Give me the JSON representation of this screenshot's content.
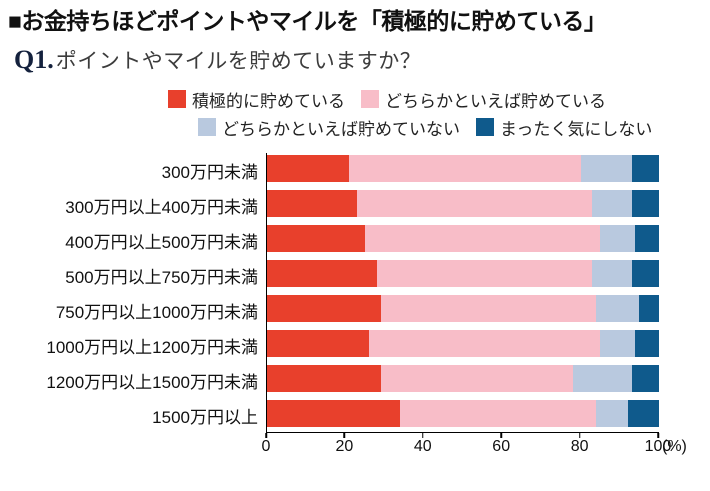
{
  "header": {
    "title": "■お金持ちほどポイントやマイルを「積極的に貯めている」"
  },
  "question": {
    "number": "Q1.",
    "text": "ポイントやマイルを貯めていますか？"
  },
  "legend": [
    {
      "label": "積極的に貯めている",
      "color": "#e8402c"
    },
    {
      "label": "どちらかといえば貯めている",
      "color": "#f8bdc8"
    },
    {
      "label": "どちらかといえば貯めていない",
      "color": "#b9c9df"
    },
    {
      "label": "まったく気にしない",
      "color": "#0f5a8c"
    }
  ],
  "chart_data": {
    "type": "bar",
    "orientation": "horizontal",
    "stacked": true,
    "title": "お金持ちほどポイントやマイルを「積極的に貯めている」",
    "xlabel": "(%)",
    "ylabel": "",
    "xlim": [
      0,
      100
    ],
    "x_ticks": [
      0,
      20,
      40,
      60,
      80,
      100
    ],
    "x_unit": "(%)",
    "grid": false,
    "legend_position": "top",
    "categories": [
      "300万円未満",
      "300万円以上400万円未満",
      "400万円以上500万円未満",
      "500万円以上750万円未満",
      "750万円以上1000万円未満",
      "1000万円以上1200万円未満",
      "1200万円以上1500万円未満",
      "1500万円以上"
    ],
    "series": [
      {
        "name": "積極的に貯めている",
        "color": "#e8402c",
        "values": [
          21,
          23,
          25,
          28,
          29,
          26,
          29,
          34
        ]
      },
      {
        "name": "どちらかといえば貯めている",
        "color": "#f8bdc8",
        "values": [
          59,
          60,
          60,
          55,
          55,
          59,
          49,
          50
        ]
      },
      {
        "name": "どちらかといえば貯めていない",
        "color": "#b9c9df",
        "values": [
          13,
          10,
          9,
          10,
          11,
          9,
          15,
          8
        ]
      },
      {
        "name": "まったく気にしない",
        "color": "#0f5a8c",
        "values": [
          7,
          7,
          6,
          7,
          5,
          6,
          7,
          8
        ]
      }
    ]
  }
}
